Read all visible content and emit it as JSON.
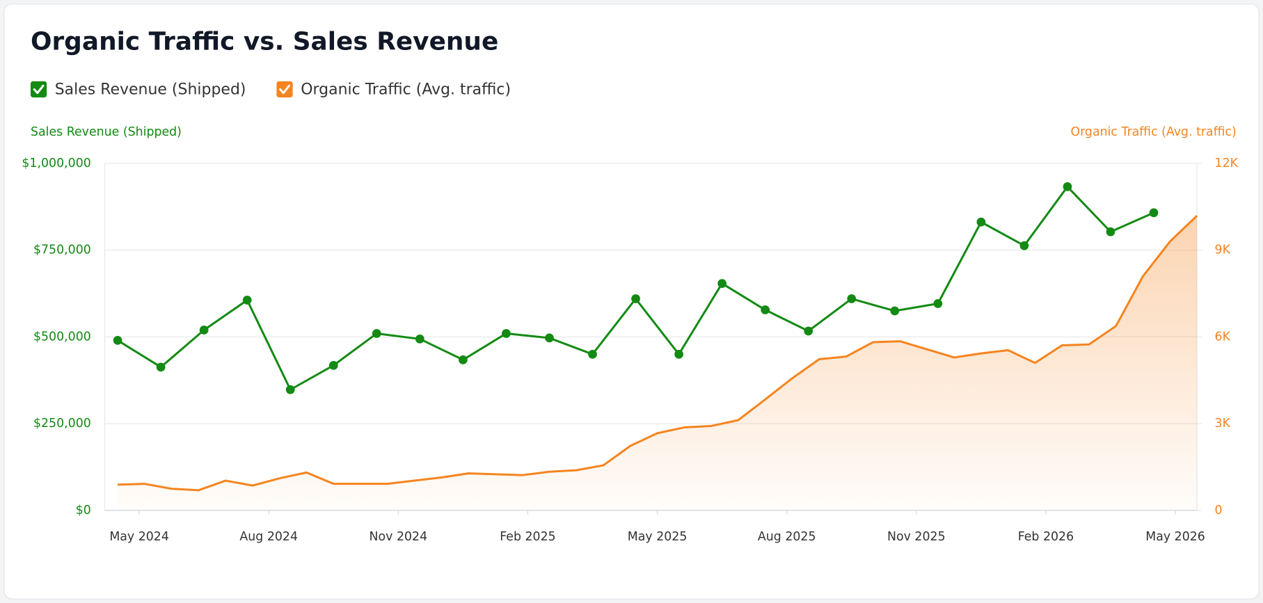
{
  "chart_data": {
    "type": "line",
    "title": "Organic Traffic vs. Sales Revenue",
    "ylabel": "Sales Revenue (Shipped)",
    "y2label": "Organic Traffic (Avg. traffic)",
    "xlim": [
      -0.3,
      25
    ],
    "xticks": [
      {
        "value": 0.5,
        "label": "May 2024"
      },
      {
        "value": 3.5,
        "label": "Aug 2024"
      },
      {
        "value": 6.5,
        "label": "Nov 2024"
      },
      {
        "value": 9.5,
        "label": "Feb 2025"
      },
      {
        "value": 12.5,
        "label": "May 2025"
      },
      {
        "value": 15.5,
        "label": "Aug 2025"
      },
      {
        "value": 18.5,
        "label": "Nov 2025"
      },
      {
        "value": 21.5,
        "label": "Feb 2026"
      },
      {
        "value": 24.5,
        "label": "May 2026"
      }
    ],
    "ylim": [
      0,
      1000000
    ],
    "yticks": [
      {
        "value": 0,
        "label": "$0"
      },
      {
        "value": 250000,
        "label": "$250,000"
      },
      {
        "value": 500000,
        "label": "$500,000"
      },
      {
        "value": 750000,
        "label": "$750,000"
      },
      {
        "value": 1000000,
        "label": "$1,000,000"
      }
    ],
    "y2lim": [
      0,
      12000
    ],
    "y2ticks": [
      0,
      {
        "value": 3000,
        "label": "3K"
      },
      {
        "value": 6000,
        "label": "6K"
      },
      {
        "value": 9000,
        "label": "9K"
      },
      {
        "value": 12000,
        "label": "12K"
      }
    ],
    "grid": true,
    "series": [
      {
        "name": "Sales Revenue (Shipped)",
        "color": "#138a13",
        "axis": "y",
        "markers": true,
        "x": [
          0,
          1,
          2,
          3,
          4,
          5,
          6,
          7,
          8,
          9,
          10,
          11,
          12,
          13,
          14,
          15,
          16,
          17,
          18,
          19,
          20,
          21,
          22,
          23,
          24
        ],
        "values": [
          490000,
          413000,
          520000,
          606000,
          348000,
          418000,
          510000,
          494000,
          434000,
          510000,
          497000,
          450000,
          610000,
          450000,
          654000,
          578000,
          517000,
          610000,
          575000,
          596000,
          831000,
          763000,
          933000,
          803000,
          858000
        ]
      },
      {
        "name": "Organic Traffic (Avg. traffic)",
        "color": "#f5841f",
        "axis": "y2",
        "area": true,
        "x": [
          0,
          0.625,
          1.25,
          1.875,
          2.5,
          3.125,
          3.75,
          4.375,
          5,
          5.625,
          6.25,
          6.875,
          7.5,
          8.125,
          8.75,
          9.375,
          10,
          10.625,
          11.25,
          11.875,
          12.5,
          13.125,
          13.75,
          14.375,
          15,
          15.625,
          16.25,
          16.875,
          17.5,
          18.125,
          18.75,
          19.375,
          20,
          20.625,
          21.25,
          21.875,
          22.5,
          23.125,
          23.75,
          24.375,
          25
        ],
        "values": [
          890,
          920,
          750,
          700,
          1030,
          860,
          1110,
          1310,
          920,
          920,
          920,
          1030,
          1140,
          1280,
          1250,
          1220,
          1340,
          1390,
          1560,
          2230,
          2670,
          2870,
          2920,
          3120,
          3840,
          4570,
          5230,
          5320,
          5820,
          5850,
          5570,
          5290,
          5430,
          5540,
          5100,
          5710,
          5740,
          6380,
          8100,
          9300,
          10190
        ]
      }
    ]
  }
}
